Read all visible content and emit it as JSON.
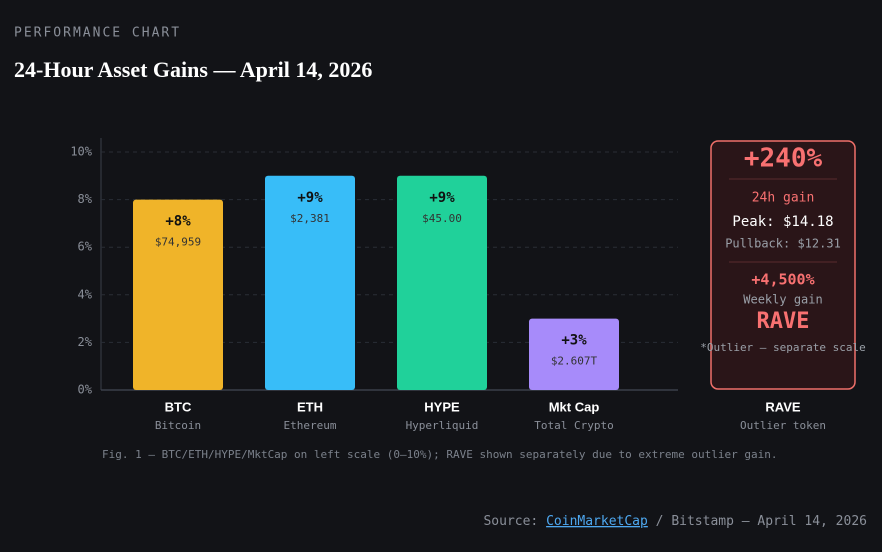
{
  "header": {
    "eyebrow": "PERFORMANCE CHART",
    "title": "24-Hour Asset Gains — April 14, 2026"
  },
  "chart_data": {
    "type": "bar",
    "categories": [
      "BTC",
      "ETH",
      "HYPE",
      "Mkt Cap"
    ],
    "subcategories": [
      "Bitcoin",
      "Ethereum",
      "Hyperliquid",
      "Total Crypto"
    ],
    "values": [
      8,
      9,
      9,
      3
    ],
    "value_labels": [
      "+8%",
      "+9%",
      "+9%",
      "+3%"
    ],
    "prices": [
      "$74,959",
      "$2,381",
      "$45.00",
      "$2.607T"
    ],
    "colors": [
      "#f0b429",
      "#38bdf8",
      "#20d19a",
      "#a78bfa"
    ],
    "ylim": [
      0,
      10
    ],
    "yticks": [
      {
        "value": 0,
        "label": "0%"
      },
      {
        "value": 2,
        "label": "2%"
      },
      {
        "value": 4,
        "label": "4%"
      },
      {
        "value": 6,
        "label": "6%"
      },
      {
        "value": 8,
        "label": "8%"
      },
      {
        "value": 10,
        "label": "10%"
      }
    ],
    "grid": true,
    "caption": "Fig. 1 — BTC/ETH/HYPE/MktCap on left scale (0–10%); RAVE shown separately due to extreme outlier gain."
  },
  "outlier": {
    "gain": "+240%",
    "gain_label": "24h gain",
    "peak": "Peak: $14.18",
    "pullback": "Pullback: $12.31",
    "weekly": "+4,500%",
    "weekly_label": "Weekly gain",
    "name": "RAVE",
    "note": "*Outlier — separate scale",
    "category": "RAVE",
    "subcategory": "Outlier token"
  },
  "source": {
    "prefix": "Source:",
    "link": "CoinMarketCap",
    "suffix": "/ Bitstamp — April 14, 2026"
  }
}
